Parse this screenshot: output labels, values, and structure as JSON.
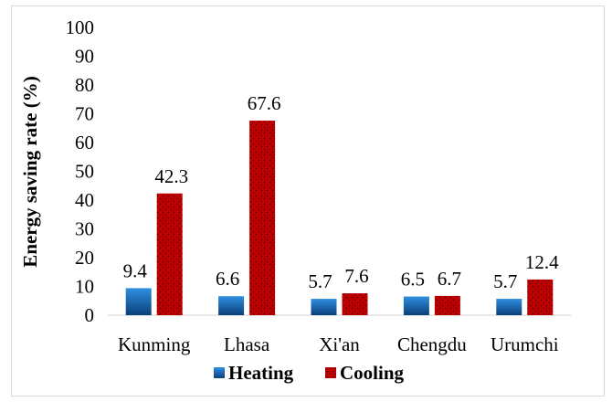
{
  "chart_data": {
    "type": "bar",
    "title": "",
    "xlabel": "",
    "ylabel": "Energy saving rate (%)",
    "ylim": [
      0,
      100
    ],
    "yticks": [
      0,
      10,
      20,
      30,
      40,
      50,
      60,
      70,
      80,
      90,
      100
    ],
    "categories": [
      "Kunming",
      "Lhasa",
      "Xi'an",
      "Chengdu",
      "Urumchi"
    ],
    "series": [
      {
        "name": "Heating",
        "values": [
          9.4,
          6.6,
          5.7,
          6.5,
          5.7
        ],
        "color": "#1f6fc4"
      },
      {
        "name": "Cooling",
        "values": [
          42.3,
          67.6,
          7.6,
          6.7,
          12.4
        ],
        "color": "#c00000"
      }
    ],
    "data_labels": [
      "9.4",
      "6.6",
      "5.7",
      "6.5",
      "5.7",
      "42.3",
      "67.6",
      "7.6",
      "6.7",
      "12.4"
    ],
    "grid": false,
    "legend_position": "bottom"
  }
}
